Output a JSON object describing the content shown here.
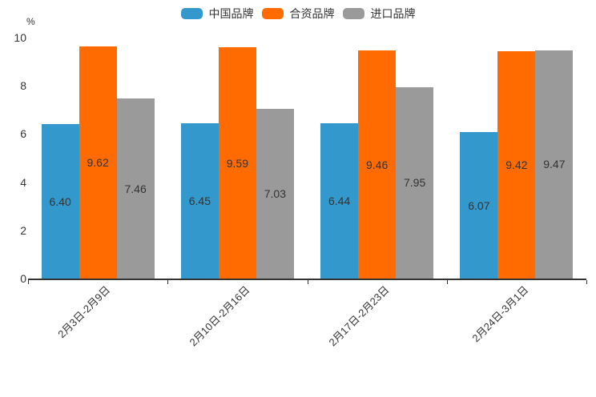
{
  "page": {
    "background": "#FFFFFF"
  },
  "chart_data": {
    "type": "bar",
    "title": "",
    "unit_label": "%",
    "categories": [
      "2月3日-2月9日",
      "2月10日-2月16日",
      "2月17日-2月23日",
      "2月24日-3月1日"
    ],
    "series": [
      {
        "name": "中国品牌",
        "color": "#3398CC",
        "values": [
          6.4,
          6.45,
          6.44,
          6.07
        ]
      },
      {
        "name": "合资品牌",
        "color": "#FF6B00",
        "values": [
          9.62,
          9.59,
          9.46,
          9.42
        ]
      },
      {
        "name": "进口品牌",
        "color": "#9A9A9A",
        "values": [
          7.46,
          7.03,
          7.95,
          9.47
        ]
      }
    ],
    "y_ticks": [
      0,
      2,
      4,
      6,
      8,
      10
    ],
    "ylim": [
      0,
      10
    ],
    "grid": false,
    "legend_position": "top-center",
    "value_label_decimals": 2,
    "x_label_rotation_deg": 45
  },
  "colors": {
    "axis_line": "#333333",
    "tick_text": "#333333",
    "value_label_text": "#333333",
    "legend_text": "#333333"
  }
}
